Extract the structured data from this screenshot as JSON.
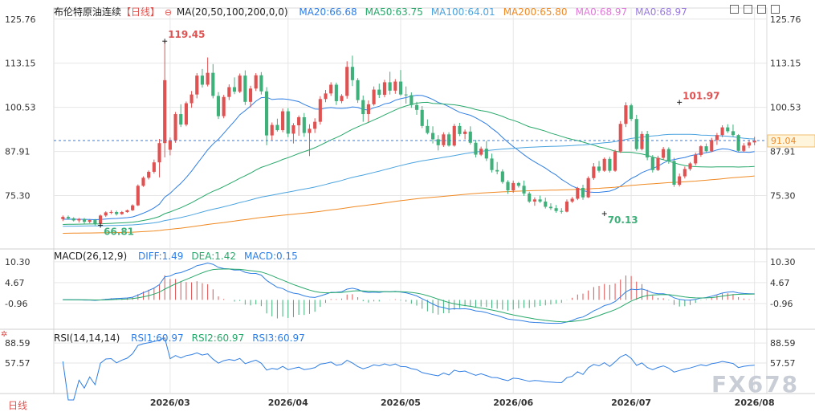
{
  "header": {
    "symbol": "布伦特原油连续",
    "period": "【日线】",
    "ma_spec": "MA(20,50,100,200,0,0)",
    "ma_values": [
      {
        "label": "MA20:66.68",
        "color": "#2f7ee5"
      },
      {
        "label": "MA50:63.75",
        "color": "#27a86a"
      },
      {
        "label": "MA100:64.01",
        "color": "#4aa3df"
      },
      {
        "label": "MA200:65.80",
        "color": "#f08a24"
      },
      {
        "label": "MA0:68.97",
        "color": "#e07ad8"
      },
      {
        "label": "MA0:68.97",
        "color": "#9a7ae0"
      }
    ]
  },
  "macd_legend": {
    "spec": "MACD(26,12,9)",
    "items": [
      {
        "label": "DIFF:1.49",
        "color": "#2f7ee5"
      },
      {
        "label": "DEA:1.42",
        "color": "#27a86a"
      },
      {
        "label": "MACD:0.15",
        "color": "#2f7ee5"
      }
    ]
  },
  "rsi_legend": {
    "spec": "RSI(14,14,14)",
    "items": [
      {
        "label": "RSI1:60.97",
        "color": "#2f7ee5"
      },
      {
        "label": "RSI2:60.97",
        "color": "#27a86a"
      },
      {
        "label": "RSI3:60.97",
        "color": "#2f7ee5"
      }
    ]
  },
  "footer": {
    "period_button": "日线",
    "watermark": "FX678"
  },
  "toolbar_icons": [
    "settings-icon",
    "layout-icon",
    "expand-icon",
    "close-icon"
  ],
  "colors": {
    "up": "#e05252",
    "down": "#3fb07a",
    "grid": "#e6e6e6",
    "price_line": "#2f7ee5",
    "price_tag_bg": "#fff4dc",
    "price_tag_fg": "#f08a24"
  },
  "chart_data": [
    {
      "type": "candlestick",
      "title": "布伦特原油连续",
      "y_ticks": [
        "125.76",
        "113.15",
        "100.53",
        "87.91",
        "75.30"
      ],
      "ylim": [
        60.5,
        128
      ],
      "x_ticks": [
        {
          "label": "2026/03",
          "index": 20
        },
        {
          "label": "2026/04",
          "index": 42
        },
        {
          "label": "2026/05",
          "index": 63
        },
        {
          "label": "2026/06",
          "index": 84
        },
        {
          "label": "2026/07",
          "index": 106
        },
        {
          "label": "2026/08",
          "index": 129
        }
      ],
      "current_price": 91.04,
      "annotations": [
        {
          "text": "119.45",
          "index": 19,
          "value": 119.45,
          "color": "#e05252"
        },
        {
          "text": "101.97",
          "index": 115,
          "value": 101.97,
          "color": "#e05252"
        },
        {
          "text": "70.13",
          "index": 101,
          "value": 70.13,
          "color": "#3fb07a"
        },
        {
          "text": "66.81",
          "index": 7,
          "value": 66.81,
          "color": "#3fb07a"
        }
      ],
      "ohlc": [
        [
          68.6,
          69.6,
          68.0,
          69.2
        ],
        [
          69.2,
          69.6,
          68.4,
          68.8
        ],
        [
          68.8,
          69.1,
          67.9,
          68.2
        ],
        [
          68.2,
          68.9,
          67.6,
          68.6
        ],
        [
          68.6,
          68.9,
          67.3,
          67.8
        ],
        [
          67.8,
          68.6,
          67.4,
          68.3
        ],
        [
          68.3,
          68.6,
          66.8,
          67.2
        ],
        [
          67.2,
          69.9,
          67.0,
          69.6
        ],
        [
          69.6,
          70.8,
          69.2,
          70.5
        ],
        [
          70.5,
          71.1,
          70.0,
          70.6
        ],
        [
          70.6,
          71.0,
          69.6,
          70.0
        ],
        [
          70.0,
          70.9,
          69.8,
          70.6
        ],
        [
          70.6,
          71.3,
          70.4,
          71.1
        ],
        [
          71.1,
          72.8,
          70.9,
          72.5
        ],
        [
          72.5,
          78.5,
          72.3,
          78.1
        ],
        [
          78.1,
          80.8,
          77.8,
          80.4
        ],
        [
          80.4,
          82.5,
          79.9,
          82.1
        ],
        [
          82.1,
          85.6,
          81.6,
          84.8
        ],
        [
          84.8,
          91.5,
          80.5,
          90.3
        ],
        [
          90.3,
          119.45,
          86.2,
          108.3
        ],
        [
          88.4,
          91.9,
          86.8,
          91.1
        ],
        [
          91.1,
          99.2,
          90.4,
          98.6
        ],
        [
          98.6,
          101.4,
          94.9,
          95.6
        ],
        [
          95.6,
          102.2,
          95.1,
          101.7
        ],
        [
          101.7,
          105.2,
          100.4,
          104.2
        ],
        [
          104.2,
          110.3,
          103.1,
          109.6
        ],
        [
          109.6,
          111.5,
          106.2,
          107.0
        ],
        [
          107.0,
          114.8,
          106.5,
          110.4
        ],
        [
          110.4,
          112.9,
          103.1,
          103.8
        ],
        [
          103.8,
          104.9,
          97.2,
          98.0
        ],
        [
          98.0,
          104.1,
          97.4,
          103.5
        ],
        [
          103.5,
          107.1,
          102.6,
          106.3
        ],
        [
          106.3,
          109.1,
          104.3,
          105.0
        ],
        [
          105.0,
          110.2,
          104.6,
          109.6
        ],
        [
          109.6,
          111.1,
          101.2,
          102.1
        ],
        [
          102.1,
          106.7,
          100.5,
          105.9
        ],
        [
          105.9,
          110.3,
          105.2,
          109.7
        ],
        [
          109.7,
          110.6,
          104.2,
          105.1
        ],
        [
          105.1,
          106.3,
          89.7,
          92.5
        ],
        [
          92.5,
          96.2,
          91.2,
          95.5
        ],
        [
          95.5,
          97.3,
          93.6,
          94.0
        ],
        [
          94.0,
          100.2,
          93.4,
          99.4
        ],
        [
          99.4,
          100.3,
          92.0,
          93.0
        ],
        [
          93.0,
          96.0,
          90.2,
          95.4
        ],
        [
          95.4,
          98.2,
          92.4,
          97.7
        ],
        [
          97.7,
          98.9,
          92.1,
          93.2
        ],
        [
          93.2,
          95.7,
          86.6,
          94.4
        ],
        [
          94.4,
          97.4,
          93.2,
          96.4
        ],
        [
          96.4,
          103.7,
          95.6,
          102.9
        ],
        [
          102.9,
          105.5,
          102.0,
          104.5
        ],
        [
          104.5,
          107.7,
          103.8,
          107.0
        ],
        [
          107.0,
          107.6,
          101.2,
          102.3
        ],
        [
          102.3,
          104.3,
          101.7,
          103.8
        ],
        [
          103.8,
          113.7,
          103.0,
          112.1
        ],
        [
          112.1,
          115.3,
          106.6,
          108.3
        ],
        [
          108.3,
          108.9,
          101.8,
          102.6
        ],
        [
          102.6,
          103.9,
          96.4,
          98.6
        ],
        [
          98.6,
          102.5,
          96.3,
          101.4
        ],
        [
          101.4,
          106.5,
          101.0,
          105.6
        ],
        [
          105.6,
          107.3,
          103.2,
          104.1
        ],
        [
          104.1,
          108.4,
          103.4,
          107.7
        ],
        [
          107.7,
          110.7,
          104.2,
          105.3
        ],
        [
          105.3,
          108.6,
          104.4,
          107.9
        ],
        [
          107.9,
          111.2,
          103.8,
          104.2
        ],
        [
          104.2,
          106.5,
          101.6,
          104.0
        ],
        [
          104.0,
          104.8,
          100.4,
          101.2
        ],
        [
          101.2,
          102.1,
          98.4,
          99.8
        ],
        [
          99.8,
          100.9,
          94.6,
          95.2
        ],
        [
          95.2,
          97.1,
          92.8,
          93.2
        ],
        [
          93.2,
          95.1,
          90.2,
          91.4
        ],
        [
          91.4,
          92.6,
          88.2,
          89.7
        ],
        [
          89.7,
          93.4,
          89.2,
          92.8
        ],
        [
          92.8,
          93.4,
          89.3,
          89.6
        ],
        [
          89.6,
          95.8,
          89.3,
          95.2
        ],
        [
          95.2,
          96.1,
          92.3,
          92.9
        ],
        [
          92.9,
          94.2,
          91.4,
          93.6
        ],
        [
          93.6,
          95.1,
          89.9,
          90.4
        ],
        [
          90.4,
          91.2,
          86.2,
          87.0
        ],
        [
          87.0,
          89.3,
          86.6,
          88.7
        ],
        [
          88.7,
          90.9,
          85.2,
          85.9
        ],
        [
          85.9,
          87.3,
          81.9,
          82.6
        ],
        [
          82.6,
          84.9,
          81.4,
          82.2
        ],
        [
          82.2,
          82.8,
          78.7,
          79.2
        ],
        [
          79.2,
          79.7,
          75.8,
          76.8
        ],
        [
          76.8,
          79.6,
          76.1,
          78.9
        ],
        [
          78.9,
          79.2,
          77.6,
          78.1
        ],
        [
          78.1,
          79.6,
          75.2,
          75.9
        ],
        [
          75.9,
          76.4,
          73.2,
          73.6
        ],
        [
          73.6,
          74.8,
          72.4,
          74.2
        ],
        [
          74.2,
          75.3,
          73.2,
          73.6
        ],
        [
          73.6,
          74.7,
          71.6,
          72.1
        ],
        [
          72.1,
          73.1,
          71.2,
          71.7
        ],
        [
          71.7,
          72.6,
          70.4,
          70.9
        ],
        [
          70.9,
          71.7,
          70.13,
          70.7
        ],
        [
          70.7,
          74.2,
          70.5,
          73.6
        ],
        [
          73.6,
          74.9,
          73.2,
          74.4
        ],
        [
          74.4,
          77.8,
          74.0,
          77.5
        ],
        [
          77.5,
          78.4,
          74.1,
          74.8
        ],
        [
          74.8,
          80.8,
          74.6,
          80.3
        ],
        [
          80.3,
          84.6,
          79.8,
          83.6
        ],
        [
          83.6,
          85.2,
          81.9,
          82.4
        ],
        [
          82.4,
          86.2,
          82.1,
          85.8
        ],
        [
          85.8,
          86.4,
          81.9,
          82.4
        ],
        [
          82.4,
          88.4,
          82.1,
          87.9
        ],
        [
          87.9,
          96.6,
          87.5,
          95.8
        ],
        [
          95.8,
          101.97,
          94.9,
          101.1
        ],
        [
          101.1,
          101.6,
          96.6,
          97.2
        ],
        [
          97.2,
          98.4,
          88.1,
          88.6
        ],
        [
          88.6,
          93.7,
          88.2,
          92.9
        ],
        [
          92.9,
          93.8,
          85.4,
          86.2
        ],
        [
          86.2,
          86.9,
          81.9,
          82.6
        ],
        [
          82.6,
          86.7,
          82.3,
          86.1
        ],
        [
          86.1,
          89.2,
          85.6,
          88.6
        ],
        [
          88.6,
          89.1,
          84.4,
          85.2
        ],
        [
          85.2,
          86.1,
          77.8,
          78.4
        ],
        [
          78.4,
          81.6,
          77.9,
          80.8
        ],
        [
          80.8,
          83.6,
          80.2,
          82.9
        ],
        [
          82.9,
          84.9,
          82.4,
          84.5
        ],
        [
          84.5,
          87.6,
          83.9,
          86.9
        ],
        [
          86.9,
          89.7,
          86.4,
          89.4
        ],
        [
          89.4,
          90.2,
          87.6,
          88.0
        ],
        [
          88.0,
          91.8,
          87.7,
          91.2
        ],
        [
          91.2,
          93.2,
          89.8,
          92.6
        ],
        [
          92.6,
          95.4,
          92.0,
          94.8
        ],
        [
          94.8,
          95.7,
          93.2,
          93.7
        ],
        [
          93.7,
          95.6,
          92.1,
          92.6
        ],
        [
          92.6,
          92.9,
          87.6,
          88.1
        ],
        [
          88.1,
          90.3,
          87.8,
          89.6
        ],
        [
          89.6,
          91.2,
          88.9,
          90.5
        ],
        [
          90.5,
          92.1,
          89.7,
          91.04
        ]
      ]
    },
    {
      "type": "macd",
      "title": "MACD(26,12,9)",
      "y_ticks": [
        "10.30",
        "4.67",
        "-0.96"
      ],
      "ylim": [
        -7.5,
        12.0
      ]
    },
    {
      "type": "rsi",
      "title": "RSI(14,14,14)",
      "y_ticks": [
        "88.59",
        "57.57"
      ],
      "ylim": [
        10,
        100
      ]
    }
  ]
}
